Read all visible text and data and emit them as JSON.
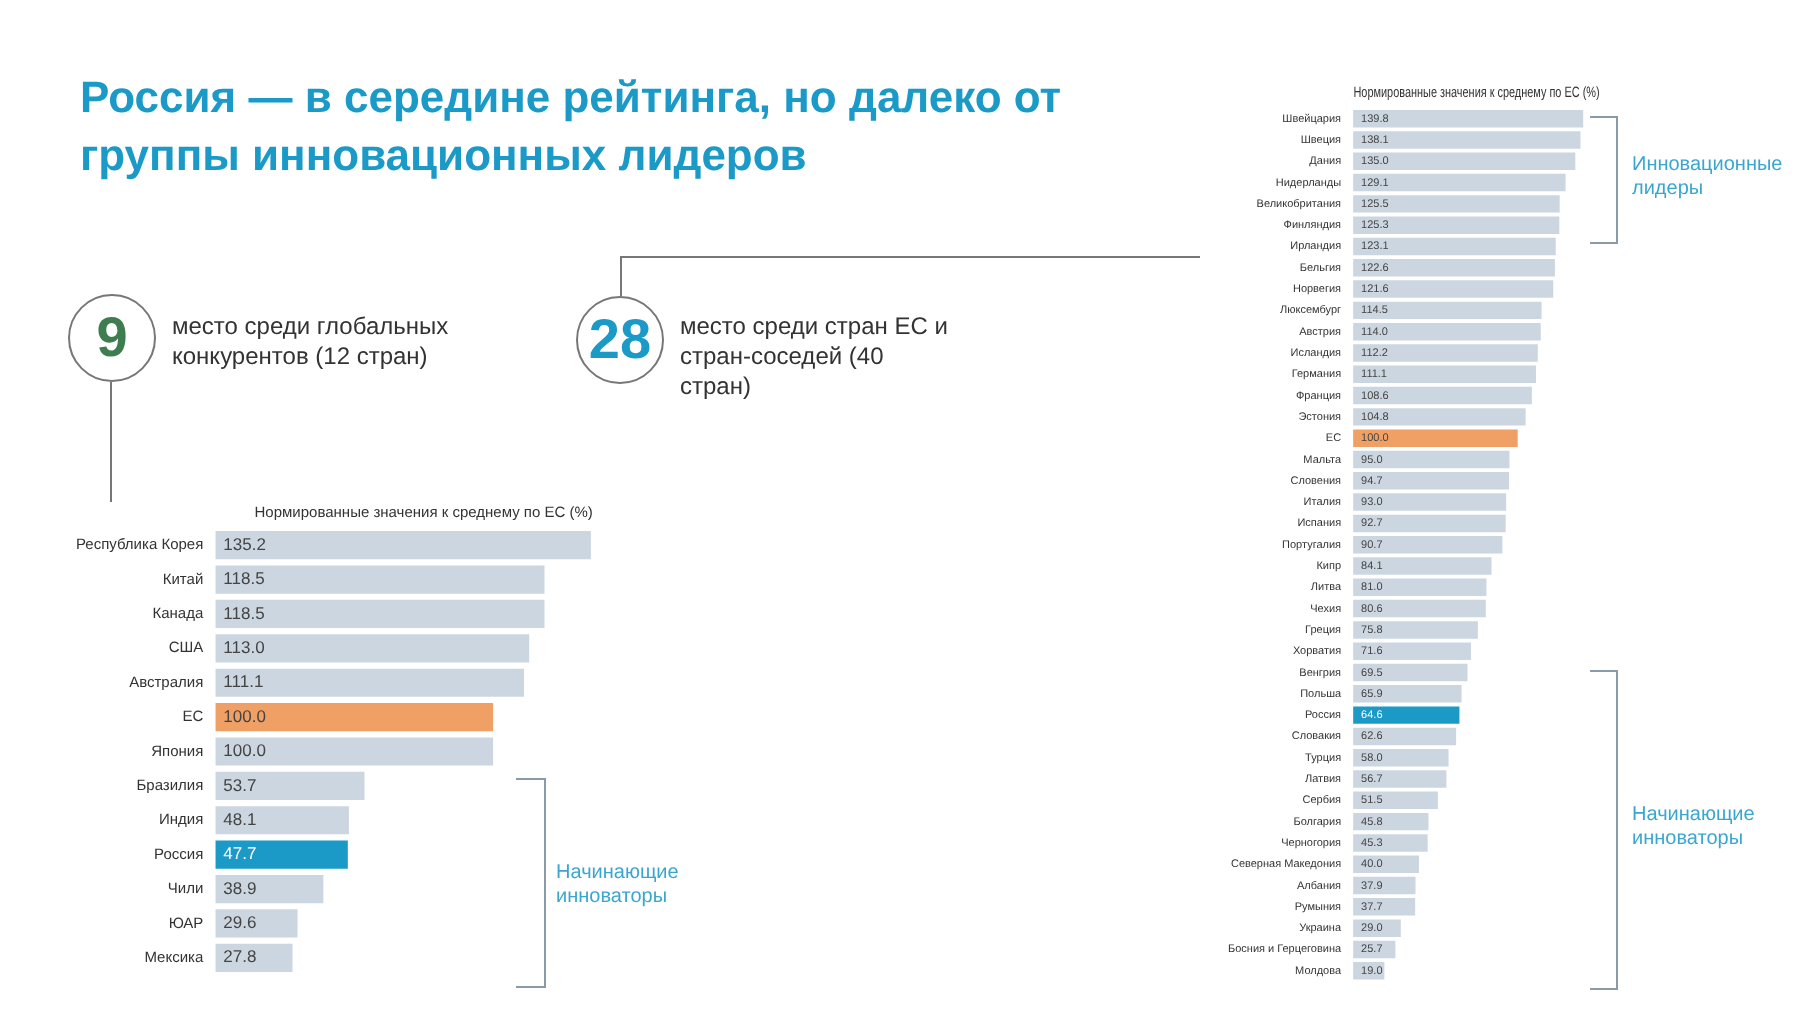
{
  "chart_data": [
    {
      "type": "bar",
      "title": "Россия — в середине рейтинга, но далеко от группы инновационных лидеров",
      "xlabel": "Нормированные значения к среднему по ЕС (%)",
      "orientation": "horizontal",
      "tick_labels": "y",
      "categories": [
        "Республика Корея",
        "Китай",
        "Канада",
        "США",
        "Австралия",
        "ЕС",
        "Япония",
        "Бразилия",
        "Индия",
        "Россия",
        "Чили",
        "ЮАР",
        "Мексика"
      ],
      "values": [
        135.2,
        118.5,
        118.5,
        113.0,
        111.1,
        100.0,
        100.0,
        53.7,
        48.1,
        47.7,
        38.9,
        29.6,
        27.8
      ],
      "value_labels": [
        "135.2",
        "118.5",
        "118.5",
        "113.0",
        "111.1",
        "100.0",
        "100.0",
        "53.7",
        "48.1",
        "47.7",
        "38.9",
        "29.6",
        "27.8"
      ],
      "colors": [
        "#ccd6e0",
        "#ccd6e0",
        "#ccd6e0",
        "#ccd6e0",
        "#ccd6e0",
        "#f0a064",
        "#ccd6e0",
        "#ccd6e0",
        "#ccd6e0",
        "#1b9ac8",
        "#ccd6e0",
        "#ccd6e0",
        "#ccd6e0"
      ],
      "annotations": [
        "9",
        "место среди глобальных конкурентов (12 стран)",
        "Начинающие инноваторы"
      ]
    },
    {
      "type": "bar",
      "xlabel": "Нормированные значения к среднему по ЕС (%)",
      "orientation": "horizontal",
      "tick_labels": "y",
      "categories": [
        "Швейцария",
        "Швеция",
        "Дания",
        "Нидерланды",
        "Великобритания",
        "Финляндия",
        "Ирландия",
        "Бельгия",
        "Норвегия",
        "Люксембург",
        "Австрия",
        "Исландия",
        "Германия",
        "Франция",
        "Эстония",
        "ЕС",
        "Мальта",
        "Словения",
        "Италия",
        "Испания",
        "Португалия",
        "Кипр",
        "Литва",
        "Чехия",
        "Греция",
        "Хорватия",
        "Венгрия",
        "Польша",
        "Россия",
        "Словакия",
        "Турция",
        "Латвия",
        "Сербия",
        "Болгария",
        "Черногория",
        "Северная Македония",
        "Албания",
        "Румыния",
        "Украина",
        "Босния и Герцеговина",
        "Молдова"
      ],
      "values": [
        139.8,
        138.1,
        135.0,
        129.1,
        125.5,
        125.3,
        123.1,
        122.6,
        121.6,
        114.5,
        114.0,
        112.2,
        111.1,
        108.6,
        104.8,
        100.0,
        95.0,
        94.7,
        93.0,
        92.7,
        90.7,
        84.1,
        81.0,
        80.6,
        75.8,
        71.6,
        69.5,
        65.9,
        64.6,
        62.6,
        58.0,
        56.7,
        51.5,
        45.8,
        45.3,
        40.0,
        37.9,
        37.7,
        29.0,
        25.7,
        19.0
      ],
      "value_labels": [
        "139.8",
        "138.1",
        "135.0",
        "129.1",
        "125.5",
        "125.3",
        "123.1",
        "122.6",
        "121.6",
        "114.5",
        "114.0",
        "112.2",
        "111.1",
        "108.6",
        "104.8",
        "100.0",
        "95.0",
        "94.7",
        "93.0",
        "92.7",
        "90.7",
        "84.1",
        "81.0",
        "80.6",
        "75.8",
        "71.6",
        "69.5",
        "65.9",
        "64.6",
        "62.6",
        "58.0",
        "56.7",
        "51.5",
        "45.8",
        "45.3",
        "40.0",
        "37.9",
        "37.7",
        "29.0",
        "25.7",
        "19.0"
      ],
      "colors": [
        "#ccd6e0",
        "#ccd6e0",
        "#ccd6e0",
        "#ccd6e0",
        "#ccd6e0",
        "#ccd6e0",
        "#ccd6e0",
        "#ccd6e0",
        "#ccd6e0",
        "#ccd6e0",
        "#ccd6e0",
        "#ccd6e0",
        "#ccd6e0",
        "#ccd6e0",
        "#ccd6e0",
        "#f0a064",
        "#ccd6e0",
        "#ccd6e0",
        "#ccd6e0",
        "#ccd6e0",
        "#ccd6e0",
        "#ccd6e0",
        "#ccd6e0",
        "#ccd6e0",
        "#ccd6e0",
        "#ccd6e0",
        "#ccd6e0",
        "#ccd6e0",
        "#1b9ac8",
        "#ccd6e0",
        "#ccd6e0",
        "#ccd6e0",
        "#ccd6e0",
        "#ccd6e0",
        "#ccd6e0",
        "#ccd6e0",
        "#ccd6e0",
        "#ccd6e0",
        "#ccd6e0",
        "#ccd6e0",
        "#ccd6e0"
      ],
      "annotations": [
        "28",
        "место среди стран ЕС и стран-соседей (40 стран)",
        "Инновационные лидеры",
        "Начинающие инноваторы"
      ]
    }
  ]
}
